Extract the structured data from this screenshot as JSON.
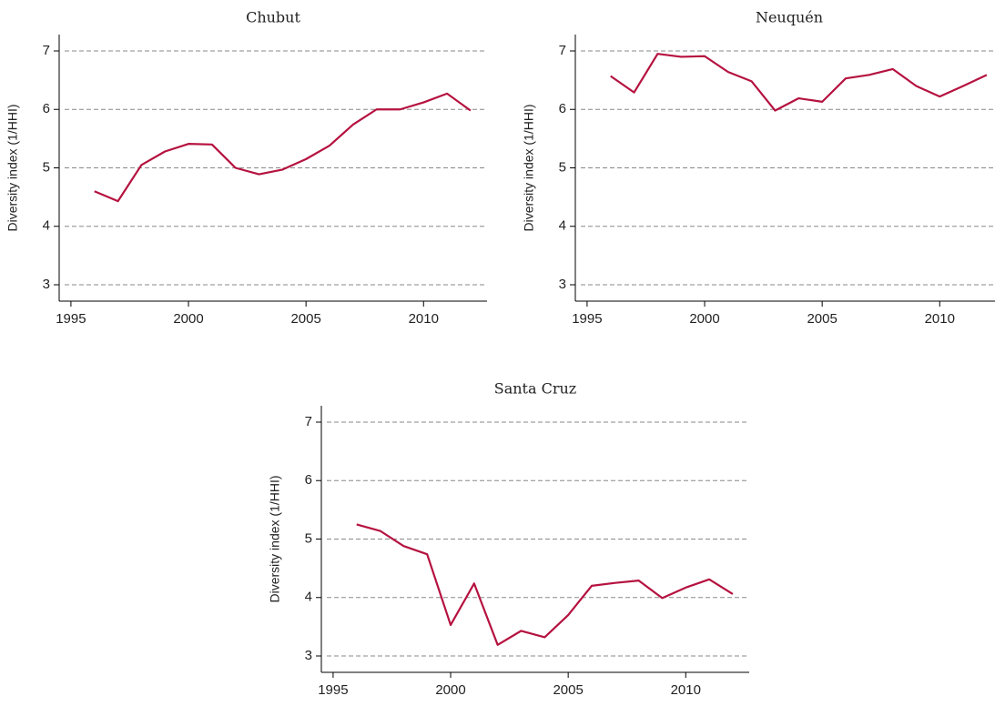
{
  "chart_data": [
    {
      "type": "line",
      "title": "Chubut",
      "ylabel": "Diversity index (1/HHI)",
      "x": [
        1996,
        1997,
        1998,
        1999,
        2000,
        2001,
        2002,
        2003,
        2004,
        2005,
        2006,
        2007,
        2008,
        2009,
        2010,
        2011,
        2012
      ],
      "values": [
        4.6,
        4.43,
        5.05,
        5.28,
        5.41,
        5.4,
        5.0,
        4.89,
        4.97,
        5.15,
        5.38,
        5.74,
        6.0,
        6.0,
        6.12,
        6.27,
        5.98
      ],
      "color": "#b5123f",
      "xlim": [
        1994.5,
        2012.7
      ],
      "ylim": [
        2.72,
        7.28
      ],
      "xticks": [
        1995,
        2000,
        2005,
        2010
      ],
      "yticks": [
        3,
        4,
        5,
        6,
        7
      ],
      "grid": true
    },
    {
      "type": "line",
      "title": "Neuquén",
      "ylabel": "Diversity index (1/HHI)",
      "x": [
        1996,
        1997,
        1998,
        1999,
        2000,
        2001,
        2002,
        2003,
        2004,
        2005,
        2006,
        2007,
        2008,
        2009,
        2010,
        2011,
        2012
      ],
      "values": [
        6.57,
        6.29,
        6.95,
        6.9,
        6.91,
        6.64,
        6.48,
        5.98,
        6.19,
        6.13,
        6.53,
        6.59,
        6.69,
        6.4,
        6.22,
        6.4,
        6.59
      ],
      "color": "#b5123f",
      "xlim": [
        1994.5,
        2012.7
      ],
      "ylim": [
        2.72,
        7.28
      ],
      "xticks": [
        1995,
        2000,
        2005,
        2010
      ],
      "yticks": [
        3,
        4,
        5,
        6,
        7
      ],
      "grid": true
    },
    {
      "type": "line",
      "title": "Santa Cruz",
      "ylabel": "Diversity index (1/HHI)",
      "x": [
        1996,
        1997,
        1998,
        1999,
        2000,
        2001,
        2002,
        2003,
        2004,
        2005,
        2006,
        2007,
        2008,
        2009,
        2010,
        2011,
        2012
      ],
      "values": [
        5.25,
        5.14,
        4.88,
        4.74,
        3.53,
        4.24,
        3.19,
        3.43,
        3.32,
        3.7,
        4.2,
        4.25,
        4.29,
        3.99,
        4.17,
        4.31,
        4.06
      ],
      "color": "#b5123f",
      "xlim": [
        1994.5,
        2012.7
      ],
      "ylim": [
        2.72,
        7.28
      ],
      "xticks": [
        1995,
        2000,
        2005,
        2010
      ],
      "yticks": [
        3,
        4,
        5,
        6,
        7
      ],
      "grid": true
    }
  ]
}
